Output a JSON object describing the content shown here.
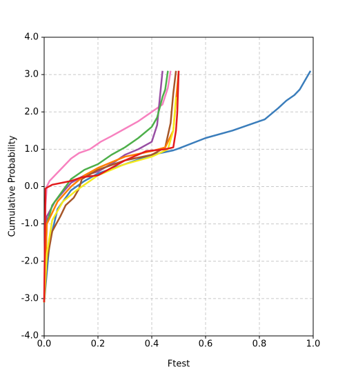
{
  "chart_data": {
    "type": "line",
    "x_label": "Ftest",
    "y_label": "Cumulative Probability",
    "xlim": [
      0,
      1
    ],
    "ylim": [
      -4,
      4
    ],
    "grid": true,
    "xticks": [
      {
        "value": 0,
        "label": "0.0"
      },
      {
        "value": 0.2,
        "label": "0.2"
      },
      {
        "value": 0.4,
        "label": "0.4"
      },
      {
        "value": 0.6,
        "label": "0.6"
      },
      {
        "value": 0.8,
        "label": "0.8"
      },
      {
        "value": 1,
        "label": "1.0"
      }
    ],
    "yticks": [
      {
        "value": -4,
        "label": "-4.0"
      },
      {
        "value": -3,
        "label": "-3.0"
      },
      {
        "value": -2,
        "label": "-2.0"
      },
      {
        "value": -1,
        "label": "-1.0"
      },
      {
        "value": 0,
        "label": "0.0"
      },
      {
        "value": 1,
        "label": "1.0"
      },
      {
        "value": 2,
        "label": "2.0"
      },
      {
        "value": 3,
        "label": "3.0"
      },
      {
        "value": 4,
        "label": "4.0"
      }
    ],
    "series": [
      {
        "color": "#3a7dbb",
        "x": [
          0,
          0.02,
          0.05,
          0.1,
          0.15,
          0.2,
          0.3,
          0.4,
          0.48,
          0.5,
          0.6,
          0.7,
          0.78,
          0.82,
          0.87,
          0.9,
          0.93,
          0.95,
          0.97,
          0.99
        ],
        "values": [
          -3.1,
          -1.5,
          -0.6,
          -0.1,
          0.15,
          0.35,
          0.6,
          0.85,
          0.97,
          1.02,
          1.3,
          1.5,
          1.7,
          1.8,
          2.1,
          2.3,
          2.45,
          2.6,
          2.85,
          3.1
        ]
      },
      {
        "color": "#f781bf",
        "x": [
          0,
          0.005,
          0.01,
          0.02,
          0.04,
          0.06,
          0.08,
          0.1,
          0.13,
          0.17,
          0.21,
          0.25,
          0.3,
          0.35,
          0.39,
          0.44,
          0.46,
          0.47
        ],
        "values": [
          -3.1,
          -0.5,
          0,
          0.15,
          0.3,
          0.45,
          0.6,
          0.75,
          0.9,
          1.0,
          1.2,
          1.35,
          1.55,
          1.75,
          1.95,
          2.2,
          2.65,
          3.1
        ]
      },
      {
        "color": "#984ea3",
        "x": [
          0,
          0.01,
          0.04,
          0.07,
          0.1,
          0.15,
          0.2,
          0.26,
          0.3,
          0.35,
          0.4,
          0.42,
          0.44
        ],
        "values": [
          -3.1,
          -0.8,
          -0.4,
          -0.15,
          0.1,
          0.3,
          0.4,
          0.65,
          0.85,
          1.0,
          1.2,
          1.65,
          3.1
        ]
      },
      {
        "color": "#4daf4a",
        "x": [
          0,
          0.01,
          0.03,
          0.06,
          0.1,
          0.15,
          0.2,
          0.25,
          0.3,
          0.35,
          0.4,
          0.42,
          0.44,
          0.45,
          0.46
        ],
        "values": [
          -3.1,
          -1.0,
          -0.5,
          -0.2,
          0.2,
          0.45,
          0.6,
          0.85,
          1.05,
          1.3,
          1.6,
          1.85,
          2.4,
          2.6,
          3.1
        ]
      },
      {
        "color": "#a65628",
        "x": [
          0,
          0.01,
          0.03,
          0.06,
          0.08,
          0.11,
          0.13,
          0.14,
          0.2,
          0.3,
          0.4,
          0.45,
          0.47,
          0.48,
          0.49
        ],
        "values": [
          -3.1,
          -2.0,
          -1.2,
          -0.8,
          -0.5,
          -0.3,
          -0.05,
          0.2,
          0.45,
          0.7,
          0.85,
          1.05,
          1.7,
          2.5,
          3.1
        ]
      },
      {
        "color": "#ff7f00",
        "x": [
          0,
          0.01,
          0.05,
          0.1,
          0.15,
          0.2,
          0.3,
          0.4,
          0.45,
          0.48,
          0.5
        ],
        "values": [
          -3.1,
          -1.0,
          -0.4,
          0,
          0.3,
          0.5,
          0.8,
          0.95,
          1.05,
          1.5,
          3.1
        ]
      },
      {
        "color": "#f5ea1e",
        "x": [
          0,
          0.01,
          0.03,
          0.07,
          0.12,
          0.2,
          0.3,
          0.4,
          0.46,
          0.48,
          0.49
        ],
        "values": [
          -3.1,
          -1.8,
          -0.9,
          -0.4,
          -0.1,
          0.3,
          0.6,
          0.8,
          1.0,
          1.5,
          2.4
        ]
      },
      {
        "color": "#e31a1c",
        "x": [
          0,
          0.005,
          0.03,
          0.1,
          0.14,
          0.2,
          0.25,
          0.3,
          0.38,
          0.45,
          0.48,
          0.49,
          0.495,
          0.5
        ],
        "values": [
          -3.1,
          -0.05,
          0.05,
          0.15,
          0.25,
          0.3,
          0.5,
          0.7,
          0.95,
          1.0,
          1.05,
          1.5,
          2.0,
          3.1
        ]
      }
    ]
  }
}
